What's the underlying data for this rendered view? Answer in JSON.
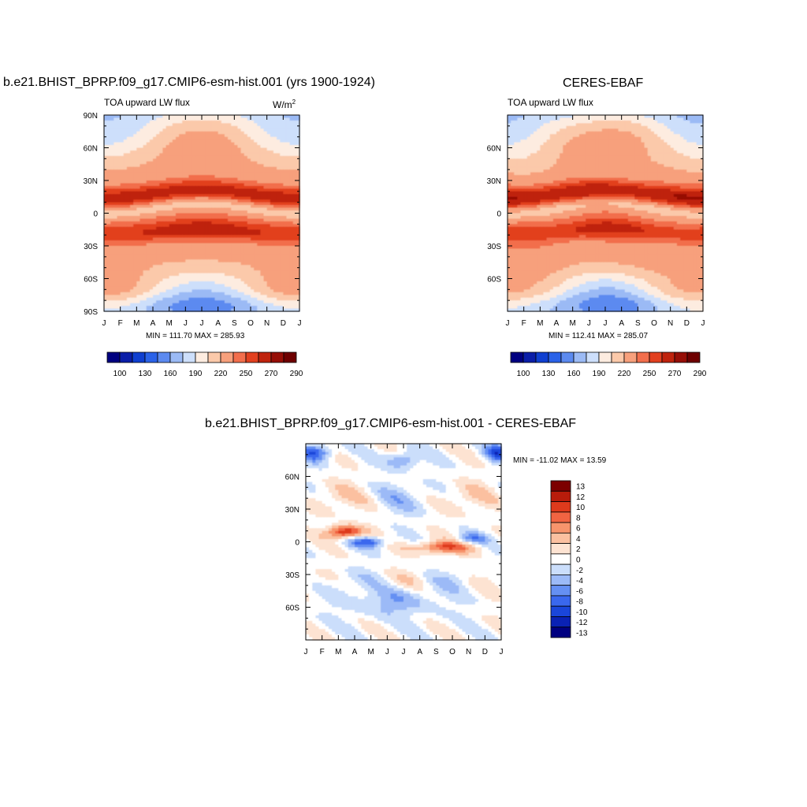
{
  "colors": {
    "seq": [
      "#000080",
      "#0a1ea8",
      "#0f3fd0",
      "#2a62e8",
      "#5c8af0",
      "#9bbaf5",
      "#cddffb",
      "#fdece0",
      "#fbc9aa",
      "#f7a07c",
      "#f26e4c",
      "#e2401f",
      "#bf230d",
      "#960e06",
      "#6e0000"
    ],
    "div": [
      "#000080",
      "#0a22b4",
      "#1a46da",
      "#3a68ee",
      "#6590f3",
      "#9cbaf7",
      "#cbdefb",
      "#ffffff",
      "#fde3d2",
      "#fbc0a0",
      "#f7946c",
      "#f16442",
      "#de3a1c",
      "#b81c0b",
      "#7c0000"
    ]
  },
  "chart_data": [
    {
      "type": "heatmap",
      "title": "b.e21.BHIST_BPRP.f09_g17.CMIP6-esm-hist.001 (yrs 1900-1924)",
      "subtitle": "TOA upward LW flux",
      "units_label": "W/m",
      "units_sup": "2",
      "x_ticks": [
        "J",
        "F",
        "M",
        "A",
        "M",
        "J",
        "J",
        "A",
        "S",
        "O",
        "N",
        "D",
        "J"
      ],
      "y_ticks": [
        "90N",
        "60N",
        "30N",
        "0",
        "30S",
        "60S",
        "90S"
      ],
      "y_tick_values": [
        90,
        60,
        30,
        0,
        -30,
        -60,
        -90
      ],
      "stats": "MIN = 111.70 MAX = 285.93",
      "min": 111.7,
      "max": 285.93,
      "legend_labels": [
        "100",
        "130",
        "160",
        "190",
        "220",
        "250",
        "270",
        "290"
      ],
      "legend_placement": "bottom",
      "color_levels": 15
    },
    {
      "type": "heatmap",
      "title": "CERES-EBAF",
      "subtitle": "TOA upward LW flux",
      "x_ticks": [
        "J",
        "F",
        "M",
        "A",
        "M",
        "J",
        "J",
        "A",
        "S",
        "O",
        "N",
        "D",
        "J"
      ],
      "y_ticks": [
        "60N",
        "30N",
        "0",
        "30S",
        "60S"
      ],
      "y_tick_values": [
        60,
        30,
        0,
        -30,
        -60
      ],
      "stats": "MIN = 112.41 MAX = 285.07",
      "min": 112.41,
      "max": 285.07,
      "legend_labels": [
        "100",
        "130",
        "160",
        "190",
        "220",
        "250",
        "270",
        "290"
      ],
      "legend_placement": "bottom",
      "color_levels": 15
    },
    {
      "type": "heatmap",
      "title": "b.e21.BHIST_BPRP.f09_g17.CMIP6-esm-hist.001 - CERES-EBAF",
      "x_ticks": [
        "J",
        "F",
        "M",
        "A",
        "M",
        "J",
        "J",
        "A",
        "S",
        "O",
        "N",
        "D",
        "J"
      ],
      "y_ticks": [
        "60N",
        "30N",
        "0",
        "30S",
        "60S"
      ],
      "y_tick_values": [
        60,
        30,
        0,
        -30,
        -60
      ],
      "stats": "MIN = -11.02 MAX =  13.59",
      "min": -11.02,
      "max": 13.59,
      "legend_labels": [
        "13",
        "12",
        "10",
        "8",
        "6",
        "4",
        "2",
        "0",
        "-2",
        "-4",
        "-6",
        "-8",
        "-10",
        "-12",
        "-13"
      ],
      "legend_placement": "right",
      "color_levels": 15
    }
  ]
}
